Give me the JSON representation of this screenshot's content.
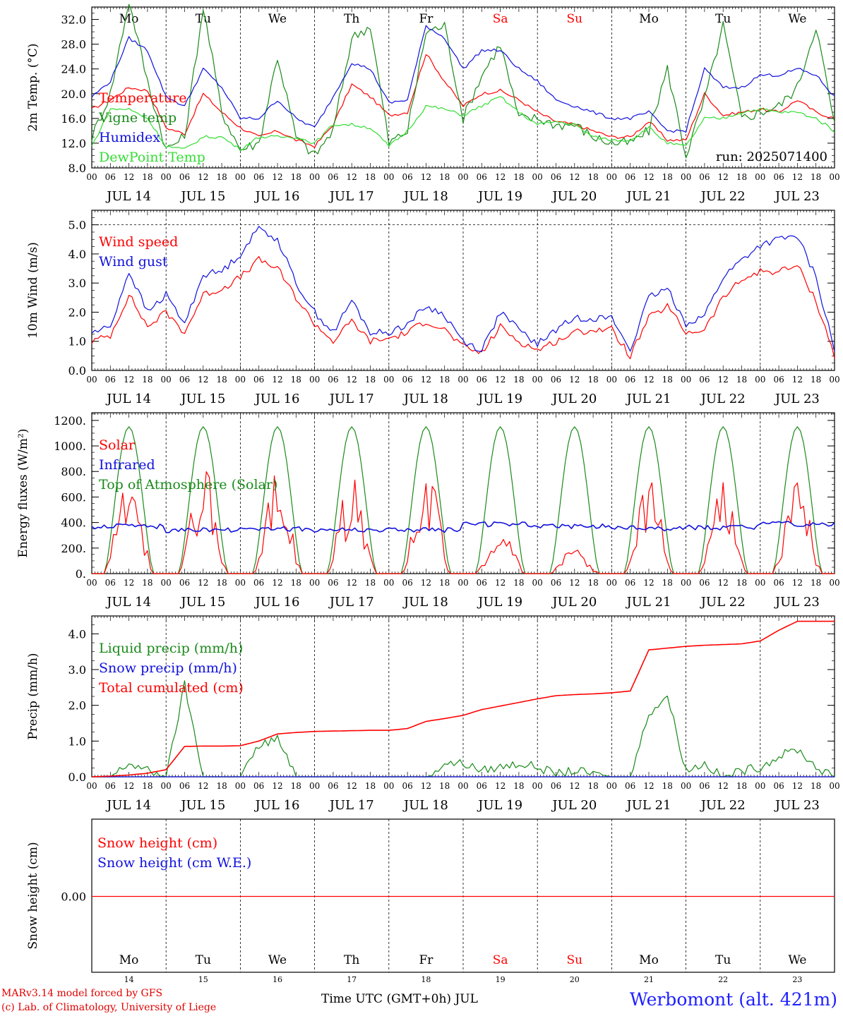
{
  "chart_data": [
    {
      "type": "line",
      "ylabel": "2m Temp. (°C)",
      "ylim": [
        8,
        34
      ],
      "yticks": [
        "8.0",
        "12.0",
        "16.0",
        "20.0",
        "24.0",
        "28.0",
        "32.0"
      ],
      "legend": [
        "Temperature",
        "Vigne temp",
        "Humidex",
        "DewPoint Temp"
      ],
      "annotation": "run: 2025071400",
      "x_hours": [
        0,
        6,
        12,
        18,
        24,
        30,
        36,
        42,
        48,
        54,
        60,
        66,
        72,
        78,
        84,
        90,
        96,
        102,
        108,
        114,
        120,
        126,
        132,
        138,
        144,
        150,
        156,
        162,
        168,
        174,
        180,
        186,
        192,
        198,
        204,
        210,
        216,
        222,
        228,
        234,
        240
      ],
      "series": [
        {
          "name": "Temperature",
          "color": "#ff0000",
          "values": [
            17.5,
            19,
            21,
            20.5,
            14.5,
            13.5,
            20,
            17,
            14.5,
            13,
            14,
            12.5,
            11.5,
            15,
            21.5,
            19.5,
            16.5,
            17,
            26.5,
            22,
            18,
            20,
            20.5,
            19,
            17,
            15.5,
            15,
            14,
            13,
            13,
            15.5,
            12.5,
            12.5,
            20,
            16.5,
            17,
            17.5,
            17,
            19,
            17,
            16
          ]
        },
        {
          "name": "Vigne temp",
          "color": "#1a8a1a",
          "values": [
            13,
            20,
            35,
            22,
            11,
            13,
            34,
            17,
            11,
            12,
            26,
            13,
            10,
            14,
            29,
            31,
            12,
            14,
            30,
            31,
            16,
            23,
            28,
            16,
            16,
            15,
            15,
            13,
            12,
            12,
            14,
            24,
            10,
            19,
            31,
            16,
            17,
            18,
            21,
            31,
            15
          ]
        },
        {
          "name": "Humidex",
          "color": "#1010dd",
          "values": [
            19.5,
            22,
            29,
            27,
            19.5,
            18,
            24,
            21,
            16,
            16,
            19,
            16,
            14.5,
            19.5,
            25,
            24,
            18.5,
            19,
            31,
            29,
            24,
            27,
            27,
            24,
            22,
            19,
            18,
            17,
            16,
            16,
            17,
            14,
            14,
            24,
            21,
            21,
            23,
            23,
            24,
            23,
            19.5
          ]
        },
        {
          "name": "DewPoint Temp",
          "color": "#33dd33",
          "values": [
            11.5,
            17.5,
            17.5,
            16,
            11.5,
            11,
            13,
            13,
            11,
            13,
            13,
            13,
            12,
            15,
            15,
            14.5,
            11.5,
            14,
            18,
            17.5,
            16.5,
            18,
            19.5,
            17,
            15,
            15.5,
            15,
            13,
            12.5,
            12.5,
            14.5,
            12,
            11.5,
            16,
            16,
            17,
            17.5,
            17,
            17,
            16,
            14
          ]
        }
      ]
    },
    {
      "type": "line",
      "ylabel": "10m Wind (m/s)",
      "ylim": [
        0,
        5.5
      ],
      "yticks": [
        "0.0",
        "1.0",
        "2.0",
        "3.0",
        "4.0",
        "5.0"
      ],
      "legend": [
        "Wind speed",
        "Wind gust"
      ],
      "x_hours": [
        0,
        6,
        12,
        18,
        24,
        30,
        36,
        42,
        48,
        54,
        60,
        66,
        72,
        78,
        84,
        90,
        96,
        102,
        108,
        114,
        120,
        126,
        132,
        138,
        144,
        150,
        156,
        162,
        168,
        174,
        180,
        186,
        192,
        198,
        204,
        210,
        216,
        222,
        228,
        234,
        240
      ],
      "series": [
        {
          "name": "Wind speed",
          "color": "#ff0000",
          "values": [
            1.0,
            1.2,
            2.6,
            1.5,
            2.0,
            1.3,
            2.6,
            2.8,
            3.2,
            3.8,
            3.5,
            2.5,
            1.6,
            1.0,
            1.7,
            1.0,
            1.1,
            1.3,
            1.7,
            1.4,
            0.8,
            0.6,
            1.5,
            1.0,
            0.7,
            1.0,
            1.3,
            1.4,
            1.4,
            0.5,
            1.8,
            2.2,
            1.3,
            1.4,
            2.5,
            3.1,
            3.4,
            3.4,
            3.6,
            2.4,
            0.5
          ]
        },
        {
          "name": "Wind gust",
          "color": "#1010dd",
          "values": [
            1.3,
            1.5,
            3.4,
            2.0,
            2.6,
            1.6,
            3.3,
            3.4,
            4.0,
            4.9,
            4.5,
            3.0,
            2.0,
            1.3,
            2.4,
            1.3,
            1.3,
            1.6,
            2.2,
            1.9,
            1.0,
            0.7,
            2.0,
            1.4,
            0.9,
            1.4,
            1.8,
            1.8,
            1.8,
            0.7,
            2.5,
            2.8,
            1.6,
            1.9,
            3.2,
            3.8,
            4.3,
            4.5,
            4.6,
            3.2,
            0.7
          ]
        }
      ]
    },
    {
      "type": "line",
      "ylabel": "Energy fluxes (W/m²)",
      "ylim": [
        0,
        1260
      ],
      "yticks": [
        "0.",
        "200.",
        "400.",
        "600.",
        "800.",
        "1000.",
        "1200."
      ],
      "legend": [
        "Solar",
        "Infrared",
        "Top of Atmosphere (Solar)"
      ],
      "series_names": [
        "Solar",
        "Infrared",
        "Top of Atmosphere (Solar)"
      ],
      "colors": [
        "#ff0000",
        "#1010dd",
        "#1a8a1a"
      ],
      "solar_peak": [
        800,
        880,
        800,
        780,
        860,
        400,
        200,
        760,
        750,
        740
      ],
      "infrared_level": [
        370,
        340,
        350,
        340,
        340,
        385,
        370,
        355,
        360,
        390
      ],
      "toa_peak": 1150
    },
    {
      "type": "line",
      "ylabel": "Precip (mm/h)",
      "ylim": [
        0,
        4.5
      ],
      "yticks": [
        "0.0",
        "1.0",
        "2.0",
        "3.0",
        "4.0"
      ],
      "legend": [
        "Liquid precip (mm/h)",
        "Snow precip (mm/h)",
        "Total cumulated (cm)"
      ],
      "x_hours": [
        0,
        6,
        12,
        18,
        24,
        30,
        36,
        42,
        48,
        54,
        60,
        66,
        72,
        78,
        84,
        90,
        96,
        102,
        108,
        114,
        120,
        126,
        132,
        138,
        144,
        150,
        156,
        162,
        168,
        174,
        180,
        186,
        192,
        198,
        204,
        210,
        216,
        222,
        228,
        234,
        240
      ],
      "series": [
        {
          "name": "Liquid precip (mm/h)",
          "color": "#1a8a1a",
          "values": [
            0,
            0,
            0.4,
            0.2,
            0,
            2.6,
            0,
            0,
            0,
            0.9,
            1.1,
            0,
            0,
            0,
            0,
            0,
            0,
            0,
            0,
            0.4,
            0.4,
            0.2,
            0.3,
            0.4,
            0.3,
            0.1,
            0.2,
            0.1,
            0,
            0,
            1.8,
            2.3,
            0.2,
            0.4,
            0,
            0.2,
            0.3,
            0.6,
            0.8,
            0.3,
            0
          ]
        },
        {
          "name": "Snow precip (mm/h)",
          "color": "#1010dd",
          "values": [
            0,
            0,
            0,
            0,
            0,
            0,
            0,
            0,
            0,
            0,
            0,
            0,
            0,
            0,
            0,
            0,
            0,
            0,
            0,
            0,
            0,
            0,
            0,
            0,
            0,
            0,
            0,
            0,
            0,
            0,
            0,
            0,
            0,
            0,
            0,
            0,
            0,
            0,
            0,
            0,
            0
          ]
        },
        {
          "name": "Total cumulated (cm)",
          "color": "#ff0000",
          "values": [
            0,
            0.02,
            0.05,
            0.1,
            0.2,
            0.85,
            0.86,
            0.86,
            0.87,
            1.0,
            1.2,
            1.24,
            1.27,
            1.28,
            1.29,
            1.3,
            1.3,
            1.35,
            1.55,
            1.63,
            1.72,
            1.88,
            1.98,
            2.08,
            2.18,
            2.27,
            2.3,
            2.32,
            2.35,
            2.4,
            3.55,
            3.6,
            3.65,
            3.68,
            3.7,
            3.72,
            3.8,
            4.1,
            4.35,
            4.35,
            4.35
          ]
        }
      ]
    },
    {
      "type": "line",
      "ylabel": "Snow height (cm)",
      "yticks": [
        "0.00"
      ],
      "legend": [
        "Snow height (cm)",
        "Snow height (cm W.E.)"
      ],
      "series": [
        {
          "name": "Snow height (cm)",
          "color": "#ff0000",
          "values": [
            0,
            0
          ]
        },
        {
          "name": "Snow height (cm W.E.)",
          "color": "#1010dd",
          "values": [
            0,
            0
          ]
        }
      ]
    }
  ],
  "days": [
    "Mo",
    "Tu",
    "We",
    "Th",
    "Fr",
    "Sa",
    "Su",
    "Mo",
    "Tu",
    "We"
  ],
  "weekend_flags": [
    false,
    false,
    false,
    false,
    false,
    true,
    true,
    false,
    false,
    false
  ],
  "dates": [
    "JUL 14",
    "JUL 15",
    "JUL 16",
    "JUL 17",
    "JUL 18",
    "JUL 19",
    "JUL 20",
    "JUL 21",
    "JUL 22",
    "JUL 23"
  ],
  "day_numbers": [
    "14",
    "15",
    "16",
    "17",
    "18",
    "19",
    "20",
    "21",
    "22",
    "23"
  ],
  "hour_ticks": [
    "00",
    "06",
    "12",
    "18"
  ],
  "hour_end": "00",
  "footer": {
    "credit1": "MARv3.14 model forced by GFS",
    "credit2": "(c) Lab. of Climatology, University of Liege",
    "xaxis": "Time UTC (GMT+0h) JUL",
    "station": "Werbomont (alt. 421m)"
  }
}
